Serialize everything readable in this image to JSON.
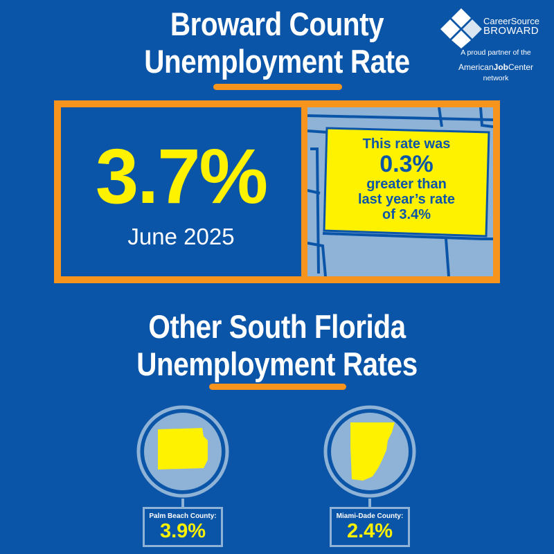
{
  "header": {
    "title_line1": "Broward County",
    "title_line2": "Unemployment Rate"
  },
  "logo": {
    "name_line1": "CareerSource",
    "name_line2": "BROWARD",
    "partner_text": "A proud partner of the",
    "ajc_prefix": "American",
    "ajc_bold": "Job",
    "ajc_suffix": "Center",
    "network_text": "network"
  },
  "hero": {
    "rate": "3.7%",
    "period": "June 2025",
    "callout_line1": "This rate was",
    "callout_change": "0.3%",
    "callout_line3": "greater than",
    "callout_line4": "last year’s rate",
    "callout_line5": "of 3.4%"
  },
  "others": {
    "title_line1": "Other South Florida",
    "title_line2": "Unemployment Rates",
    "counties": [
      {
        "name": "Palm Beach County:",
        "rate": "3.9%"
      },
      {
        "name": "Miami-Dade County:",
        "rate": "2.4%"
      }
    ]
  },
  "colors": {
    "background": "#0b55a8",
    "accent_orange": "#f7941d",
    "highlight_yellow": "#fff200",
    "map_gray": "#8fb3d6"
  }
}
